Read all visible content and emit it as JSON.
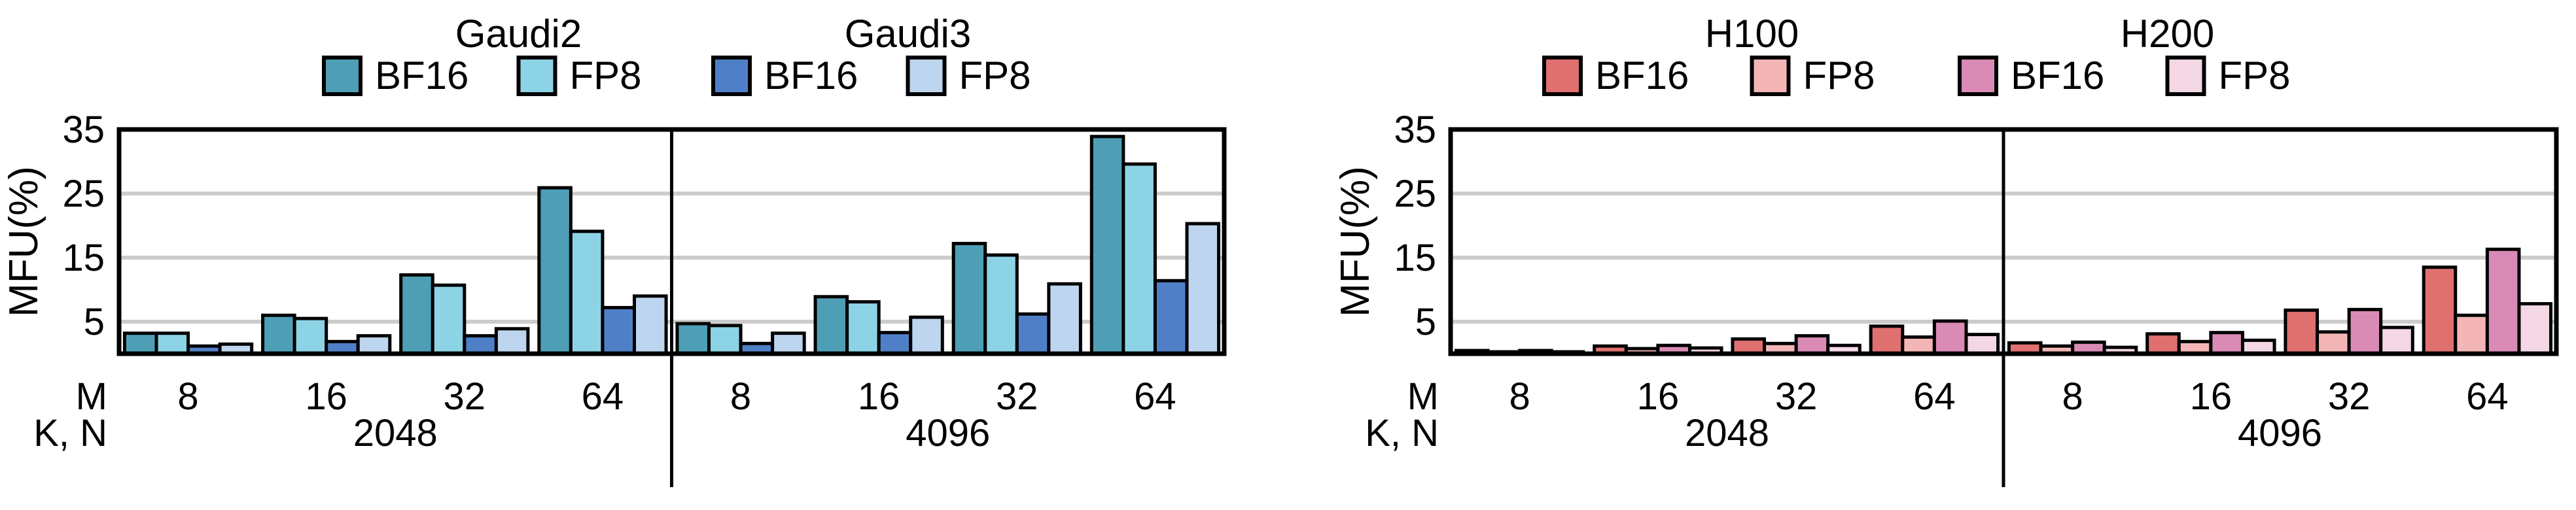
{
  "chart_data": [
    {
      "type": "bar",
      "ylabel": "MFU(%)",
      "ylim": [
        0,
        35
      ],
      "yticks": [
        5,
        15,
        25,
        35
      ],
      "grid": true,
      "legend_position": "top",
      "row_labels": [
        "M",
        "K, N"
      ],
      "groups": [
        {
          "label": "2048",
          "categories": [
            "8",
            "16",
            "32",
            "64"
          ]
        },
        {
          "label": "4096",
          "categories": [
            "8",
            "16",
            "32",
            "64"
          ]
        }
      ],
      "legend_groups": [
        {
          "title": "Gaudi2",
          "series": [
            0,
            1
          ]
        },
        {
          "title": "Gaudi3",
          "series": [
            2,
            3
          ]
        }
      ],
      "series": [
        {
          "name": "BF16",
          "color": "#4e9fb6",
          "values": [
            3.2,
            6.0,
            12.3,
            25.9,
            4.7,
            8.9,
            17.2,
            33.9
          ]
        },
        {
          "name": "FP8",
          "color": "#8dd3e6",
          "values": [
            3.2,
            5.5,
            10.7,
            19.1,
            4.4,
            8.1,
            15.4,
            29.6
          ]
        },
        {
          "name": "BF16",
          "color": "#4f7fc6",
          "values": [
            1.2,
            1.9,
            2.8,
            7.2,
            1.6,
            3.3,
            6.2,
            11.4
          ]
        },
        {
          "name": "FP8",
          "color": "#bdd5ee",
          "values": [
            1.5,
            2.8,
            3.9,
            9.0,
            3.2,
            5.7,
            10.9,
            20.3
          ]
        }
      ]
    },
    {
      "type": "bar",
      "ylabel": "MFU(%)",
      "ylim": [
        0,
        35
      ],
      "yticks": [
        5,
        15,
        25,
        35
      ],
      "grid": true,
      "legend_position": "top",
      "row_labels": [
        "M",
        "K, N"
      ],
      "groups": [
        {
          "label": "2048",
          "categories": [
            "8",
            "16",
            "32",
            "64"
          ]
        },
        {
          "label": "4096",
          "categories": [
            "8",
            "16",
            "32",
            "64"
          ]
        }
      ],
      "legend_groups": [
        {
          "title": "H100",
          "series": [
            0,
            1
          ]
        },
        {
          "title": "H200",
          "series": [
            2,
            3
          ]
        }
      ],
      "series": [
        {
          "name": "BF16",
          "color": "#e07070",
          "values": [
            0.5,
            1.2,
            2.3,
            4.3,
            1.7,
            3.1,
            6.8,
            13.5
          ]
        },
        {
          "name": "FP8",
          "color": "#f3b5b5",
          "values": [
            0.3,
            0.8,
            1.6,
            2.6,
            1.2,
            1.9,
            3.4,
            6.0
          ]
        },
        {
          "name": "BF16",
          "color": "#d98bb5",
          "values": [
            0.5,
            1.3,
            2.8,
            5.1,
            1.8,
            3.3,
            6.9,
            16.3
          ]
        },
        {
          "name": "FP8",
          "color": "#f4d7e4",
          "values": [
            0.3,
            0.9,
            1.3,
            3.0,
            1.0,
            2.1,
            4.1,
            7.8
          ]
        }
      ]
    }
  ]
}
